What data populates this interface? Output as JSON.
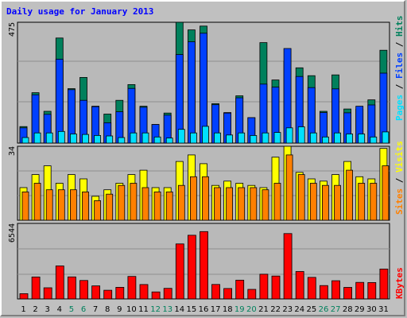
{
  "title": "Daily usage for January 2013",
  "colors": {
    "background": "#c0c0c0",
    "plot": "#b9b9b9",
    "hits": "#00805c",
    "files": "#0040ff",
    "pages": "#00e0ff",
    "visits": "#ffff00",
    "sites": "#ff8000",
    "kbytes": "#ff0000",
    "title": "#0000ff",
    "weekend_day": "#00805c",
    "weekday": "#000000",
    "separator": "#000000"
  },
  "chart_data": [
    {
      "type": "bar",
      "name": "hits-files-pages",
      "categories": [
        "1",
        "2",
        "3",
        "4",
        "5",
        "6",
        "7",
        "8",
        "9",
        "10",
        "11",
        "12",
        "13",
        "14",
        "15",
        "16",
        "17",
        "18",
        "19",
        "20",
        "21",
        "22",
        "23",
        "24",
        "25",
        "26",
        "27",
        "28",
        "29",
        "30",
        "31"
      ],
      "ytick": "475",
      "ylim": [
        0,
        475
      ],
      "series": [
        {
          "name": "Hits",
          "values": [
            65,
            198,
            125,
            413,
            214,
            258,
            145,
            114,
            168,
            230,
            145,
            73,
            118,
            475,
            445,
            460,
            155,
            120,
            186,
            100,
            395,
            248,
            322,
            296,
            265,
            125,
            268,
            134,
            133,
            170,
            365
          ]
        },
        {
          "name": "Files",
          "values": [
            60,
            190,
            113,
            330,
            210,
            168,
            143,
            80,
            123,
            215,
            141,
            73,
            110,
            348,
            398,
            432,
            151,
            118,
            178,
            100,
            232,
            220,
            372,
            262,
            218,
            120,
            213,
            119,
            145,
            150,
            275
          ]
        },
        {
          "name": "Pages",
          "values": [
            22,
            40,
            40,
            46,
            36,
            34,
            30,
            28,
            22,
            40,
            40,
            24,
            20,
            54,
            40,
            66,
            40,
            32,
            40,
            30,
            40,
            42,
            60,
            64,
            40,
            24,
            40,
            36,
            36,
            24,
            44
          ]
        }
      ],
      "side_labels": [
        "Pages",
        "/",
        "Files",
        "/",
        "Hits"
      ]
    },
    {
      "type": "bar",
      "name": "sites-visits",
      "categories": [
        "1",
        "2",
        "3",
        "4",
        "5",
        "6",
        "7",
        "8",
        "9",
        "10",
        "11",
        "12",
        "13",
        "14",
        "15",
        "16",
        "17",
        "18",
        "19",
        "20",
        "21",
        "22",
        "23",
        "24",
        "25",
        "26",
        "27",
        "28",
        "29",
        "30",
        "31"
      ],
      "ytick": "34",
      "ylim": [
        0,
        34
      ],
      "series": [
        {
          "name": "Visits",
          "values": [
            15,
            21,
            25,
            17,
            21,
            19,
            11,
            14,
            17,
            21,
            23,
            15,
            15,
            27,
            30,
            26,
            16,
            18,
            17,
            16,
            15,
            29,
            34,
            22,
            19,
            18,
            21,
            27,
            20,
            19,
            33
          ]
        },
        {
          "name": "Sites",
          "values": [
            13,
            17,
            14,
            14,
            14,
            13,
            9,
            12,
            16,
            17,
            15,
            13,
            13,
            16,
            20,
            20,
            15,
            15,
            15,
            15,
            14,
            17,
            30,
            21,
            17,
            16,
            16,
            23,
            17,
            17,
            25
          ]
        }
      ],
      "side_labels": [
        "Sites",
        "/",
        "Visits"
      ]
    },
    {
      "type": "bar",
      "name": "kbytes",
      "categories": [
        "1",
        "2",
        "3",
        "4",
        "5",
        "6",
        "7",
        "8",
        "9",
        "10",
        "11",
        "12",
        "13",
        "14",
        "15",
        "16",
        "17",
        "18",
        "19",
        "20",
        "21",
        "22",
        "23",
        "24",
        "25",
        "26",
        "27",
        "28",
        "29",
        "30",
        "31"
      ],
      "ytick": "6544",
      "ylim": [
        0,
        6544
      ],
      "series": [
        {
          "name": "KBytes",
          "values": [
            454,
            1898,
            963,
            2862,
            1906,
            1601,
            1128,
            753,
            1005,
            1946,
            1248,
            609,
            913,
            4765,
            5518,
            5836,
            1254,
            900,
            1629,
            826,
            2139,
            1986,
            5663,
            2376,
            1865,
            1156,
            1576,
            996,
            1433,
            1418,
            2587
          ]
        }
      ],
      "side_labels": [
        "KBytes"
      ]
    }
  ],
  "weekend_days": [
    "5",
    "6",
    "12",
    "13",
    "19",
    "20",
    "26",
    "27"
  ]
}
